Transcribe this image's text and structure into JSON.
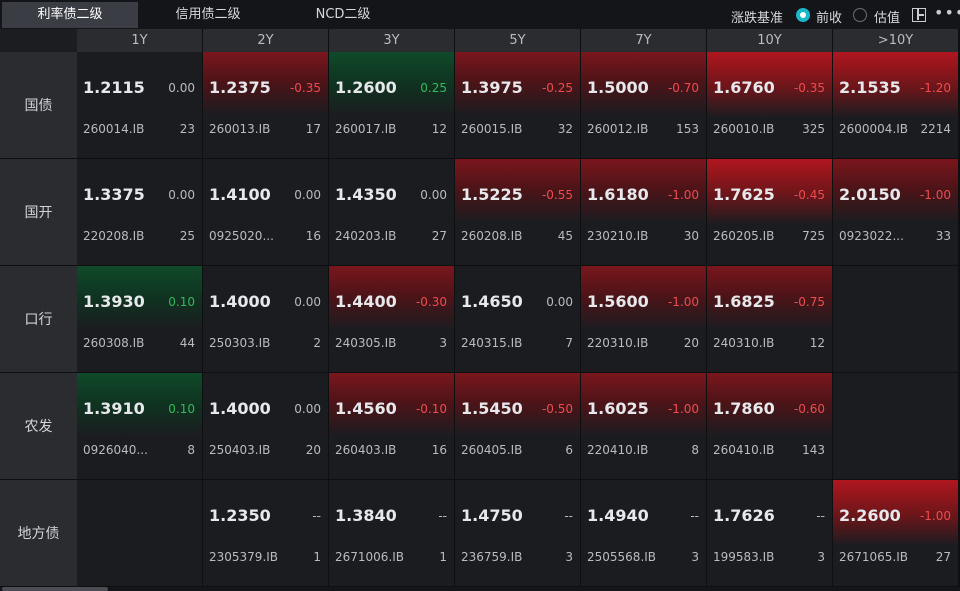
{
  "tabs": [
    {
      "label": "利率债二级",
      "active": true
    },
    {
      "label": "信用债二级",
      "active": false
    },
    {
      "label": "NCD二级",
      "active": false
    }
  ],
  "basis": {
    "label": "涨跌基准",
    "options": [
      {
        "label": "前收",
        "checked": true
      },
      {
        "label": "估值",
        "checked": false
      }
    ]
  },
  "icons": {
    "layout": "layout-icon",
    "more": "more-icon"
  },
  "colors": {
    "accent": "#18b8c9",
    "up": "#2fba5c",
    "down": "#f04a4f"
  },
  "columns": [
    "1Y",
    "2Y",
    "3Y",
    "5Y",
    "7Y",
    "10Y",
    ">10Y"
  ],
  "rows": [
    {
      "label": "国债",
      "cells": [
        {
          "yield": "1.2115",
          "change": "0.00",
          "code": "260014.IB",
          "count": "23",
          "tone": "zero"
        },
        {
          "yield": "1.2375",
          "change": "-0.35",
          "code": "260013.IB",
          "count": "17",
          "tone": "neg"
        },
        {
          "yield": "1.2600",
          "change": "0.25",
          "code": "260017.IB",
          "count": "12",
          "tone": "pos"
        },
        {
          "yield": "1.3975",
          "change": "-0.25",
          "code": "260015.IB",
          "count": "32",
          "tone": "neg"
        },
        {
          "yield": "1.5000",
          "change": "-0.70",
          "code": "260012.IB",
          "count": "153",
          "tone": "neg"
        },
        {
          "yield": "1.6760",
          "change": "-0.35",
          "code": "260010.IB",
          "count": "325",
          "tone": "neg2"
        },
        {
          "yield": "2.1535",
          "change": "-1.20",
          "code": "2600004.IB",
          "count": "2214",
          "tone": "neg2"
        }
      ]
    },
    {
      "label": "国开",
      "cells": [
        {
          "yield": "1.3375",
          "change": "0.00",
          "code": "220208.IB",
          "count": "25",
          "tone": "zero"
        },
        {
          "yield": "1.4100",
          "change": "0.00",
          "code": "0925020...",
          "count": "16",
          "tone": "zero"
        },
        {
          "yield": "1.4350",
          "change": "0.00",
          "code": "240203.IB",
          "count": "27",
          "tone": "zero"
        },
        {
          "yield": "1.5225",
          "change": "-0.55",
          "code": "260208.IB",
          "count": "45",
          "tone": "neg"
        },
        {
          "yield": "1.6180",
          "change": "-1.00",
          "code": "230210.IB",
          "count": "30",
          "tone": "neg"
        },
        {
          "yield": "1.7625",
          "change": "-0.45",
          "code": "260205.IB",
          "count": "725",
          "tone": "neg2"
        },
        {
          "yield": "2.0150",
          "change": "-1.00",
          "code": "0923022...",
          "count": "33",
          "tone": "neg"
        }
      ]
    },
    {
      "label": "口行",
      "cells": [
        {
          "yield": "1.3930",
          "change": "0.10",
          "code": "260308.IB",
          "count": "44",
          "tone": "pos"
        },
        {
          "yield": "1.4000",
          "change": "0.00",
          "code": "250303.IB",
          "count": "2",
          "tone": "zero"
        },
        {
          "yield": "1.4400",
          "change": "-0.30",
          "code": "240305.IB",
          "count": "3",
          "tone": "neg"
        },
        {
          "yield": "1.4650",
          "change": "0.00",
          "code": "240315.IB",
          "count": "7",
          "tone": "zero"
        },
        {
          "yield": "1.5600",
          "change": "-1.00",
          "code": "220310.IB",
          "count": "20",
          "tone": "neg"
        },
        {
          "yield": "1.6825",
          "change": "-0.75",
          "code": "240310.IB",
          "count": "12",
          "tone": "neg"
        },
        null
      ]
    },
    {
      "label": "农发",
      "cells": [
        {
          "yield": "1.3910",
          "change": "0.10",
          "code": "0926040...",
          "count": "8",
          "tone": "pos"
        },
        {
          "yield": "1.4000",
          "change": "0.00",
          "code": "250403.IB",
          "count": "20",
          "tone": "zero"
        },
        {
          "yield": "1.4560",
          "change": "-0.10",
          "code": "260403.IB",
          "count": "16",
          "tone": "neg"
        },
        {
          "yield": "1.5450",
          "change": "-0.50",
          "code": "260405.IB",
          "count": "6",
          "tone": "neg"
        },
        {
          "yield": "1.6025",
          "change": "-1.00",
          "code": "220410.IB",
          "count": "8",
          "tone": "neg"
        },
        {
          "yield": "1.7860",
          "change": "-0.60",
          "code": "260410.IB",
          "count": "143",
          "tone": "neg"
        },
        null
      ]
    },
    {
      "label": "地方债",
      "cells": [
        null,
        {
          "yield": "1.2350",
          "change": "--",
          "code": "2305379.IB",
          "count": "1",
          "tone": "zero"
        },
        {
          "yield": "1.3840",
          "change": "--",
          "code": "2671006.IB",
          "count": "1",
          "tone": "zero"
        },
        {
          "yield": "1.4750",
          "change": "--",
          "code": "236759.IB",
          "count": "3",
          "tone": "zero"
        },
        {
          "yield": "1.4940",
          "change": "--",
          "code": "2505568.IB",
          "count": "3",
          "tone": "zero"
        },
        {
          "yield": "1.7626",
          "change": "--",
          "code": "199583.IB",
          "count": "3",
          "tone": "zero"
        },
        {
          "yield": "2.2600",
          "change": "-1.00",
          "code": "2671065.IB",
          "count": "27",
          "tone": "neg2"
        }
      ]
    }
  ]
}
